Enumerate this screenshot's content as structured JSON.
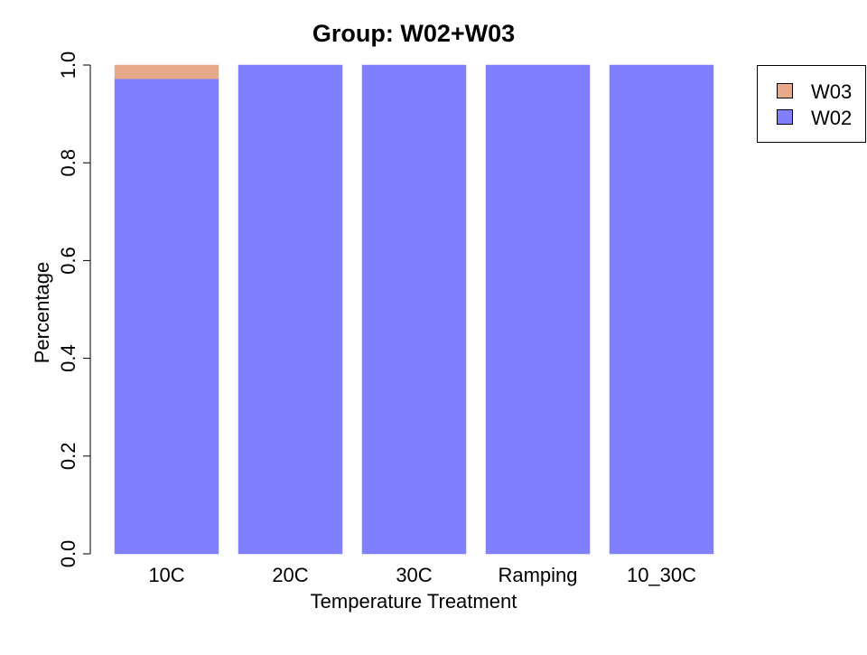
{
  "chart_data": {
    "type": "bar",
    "stacked": true,
    "title": "Group: W02+W03",
    "xlabel": "Temperature Treatment",
    "ylabel": "Percentage",
    "categories": [
      "10C",
      "20C",
      "30C",
      "Ramping",
      "10_30C"
    ],
    "series": [
      {
        "name": "W02",
        "color": "#8080ff",
        "values": [
          0.972,
          1.0,
          1.0,
          1.0,
          1.0
        ]
      },
      {
        "name": "W03",
        "color": "#e8a98a",
        "values": [
          0.028,
          0.0,
          0.0,
          0.0,
          0.0
        ]
      }
    ],
    "ylim": [
      0,
      1
    ],
    "yticks": [
      "0.0",
      "0.2",
      "0.4",
      "0.6",
      "0.8",
      "1.0"
    ],
    "legend": {
      "placement": "top-right",
      "entries": [
        "W03",
        "W02"
      ]
    },
    "grid": false
  }
}
